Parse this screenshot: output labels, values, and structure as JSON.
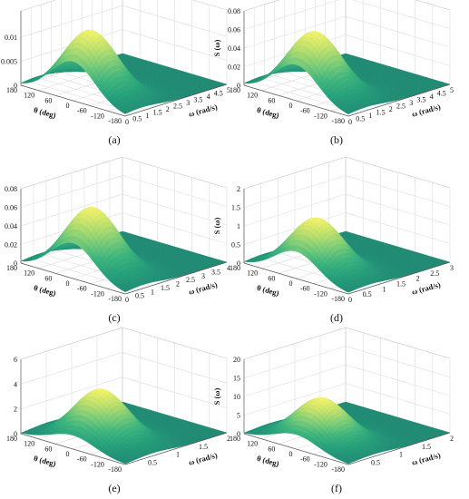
{
  "figure": {
    "background": "#ffffff"
  },
  "chart_data": [
    {
      "type": "surface",
      "panel_label": "(a)",
      "zlabel": "S (ω)",
      "xlabel": "ω (rad/s)",
      "ylabel": "θ (deg)",
      "z_ticks": [
        "0",
        "0.005",
        "0.01"
      ],
      "z_tick_values": [
        0,
        0.005,
        0.01
      ],
      "zlim": [
        0,
        0.0155
      ],
      "x_ticks": [
        "0",
        "0.5",
        "1",
        "1.5",
        "2",
        "2.5",
        "3",
        "3.5",
        "4",
        "4.5",
        "5"
      ],
      "x_tick_values": [
        0,
        0.5,
        1,
        1.5,
        2,
        2.5,
        3,
        3.5,
        4,
        4.5,
        5
      ],
      "xlim": [
        0,
        5
      ],
      "y_ticks": [
        "180",
        "120",
        "60",
        "0",
        "-60",
        "-120",
        "-180"
      ],
      "y_tick_values": [
        180,
        120,
        60,
        0,
        -60,
        -120,
        -180
      ],
      "ylim": [
        -180,
        180
      ],
      "peak": {
        "omega": 0.85,
        "theta": 0,
        "value": 0.0135
      }
    },
    {
      "type": "surface",
      "panel_label": "(b)",
      "zlabel": "S (ω)",
      "xlabel": "ω (rad/s)",
      "ylabel": "θ (deg)",
      "z_ticks": [
        "0",
        "0.02",
        "0.04",
        "0.06",
        "0.08"
      ],
      "z_tick_values": [
        0,
        0.02,
        0.04,
        0.06,
        0.08
      ],
      "zlim": [
        0,
        0.08
      ],
      "x_ticks": [
        "0",
        "0.5",
        "1",
        "1.5",
        "2",
        "2.5",
        "3",
        "3.5",
        "4",
        "4.5",
        "5"
      ],
      "x_tick_values": [
        0,
        0.5,
        1,
        1.5,
        2,
        2.5,
        3,
        3.5,
        4,
        4.5,
        5
      ],
      "xlim": [
        0,
        5
      ],
      "y_ticks": [
        "180",
        "120",
        "60",
        "0",
        "-60",
        "-120",
        "-180"
      ],
      "y_tick_values": [
        180,
        120,
        60,
        0,
        -60,
        -120,
        -180
      ],
      "ylim": [
        -180,
        180
      ],
      "peak": {
        "omega": 0.9,
        "theta": 0,
        "value": 0.068
      }
    },
    {
      "type": "surface",
      "panel_label": "(c)",
      "zlabel": "S (ω)",
      "xlabel": "ω (rad/s)",
      "ylabel": "θ (deg)",
      "z_ticks": [
        "0",
        "0.02",
        "0.04",
        "0.06",
        "0.08"
      ],
      "z_tick_values": [
        0,
        0.02,
        0.04,
        0.06,
        0.08
      ],
      "zlim": [
        0,
        0.08
      ],
      "x_ticks": [
        "0",
        "0.5",
        "1",
        "1.5",
        "2",
        "2.5",
        "3",
        "3.5",
        "4"
      ],
      "x_tick_values": [
        0,
        0.5,
        1,
        1.5,
        2,
        2.5,
        3,
        3.5,
        4
      ],
      "xlim": [
        0,
        4
      ],
      "y_ticks": [
        "180",
        "120",
        "60",
        "0",
        "-60",
        "-120",
        "-180"
      ],
      "y_tick_values": [
        180,
        120,
        60,
        0,
        -60,
        -120,
        -180
      ],
      "ylim": [
        -180,
        180
      ],
      "peak": {
        "omega": 0.75,
        "theta": 0,
        "value": 0.07
      }
    },
    {
      "type": "surface",
      "panel_label": "(d)",
      "zlabel": "S (ω)",
      "xlabel": "ω (rad/s)",
      "ylabel": "θ (deg)",
      "z_ticks": [
        "0",
        "0.5",
        "1",
        "1.5",
        "2"
      ],
      "z_tick_values": [
        0,
        0.5,
        1,
        1.5,
        2
      ],
      "zlim": [
        0,
        2
      ],
      "x_ticks": [
        "0",
        "0.5",
        "1",
        "1.5",
        "2",
        "2.5",
        "3"
      ],
      "x_tick_values": [
        0,
        0.5,
        1,
        1.5,
        2,
        2.5,
        3
      ],
      "xlim": [
        0,
        3
      ],
      "y_ticks": [
        "180",
        "120",
        "60",
        "0",
        "-60",
        "-120",
        "-180"
      ],
      "y_tick_values": [
        180,
        120,
        60,
        0,
        -60,
        -120,
        -180
      ],
      "ylim": [
        -180,
        180
      ],
      "peak": {
        "omega": 0.6,
        "theta": 0,
        "value": 1.45
      }
    },
    {
      "type": "surface",
      "panel_label": "(e)",
      "zlabel": "S (ω)",
      "xlabel": "ω (rad/s)",
      "ylabel": "θ (deg)",
      "z_ticks": [
        "0",
        "2",
        "4",
        "6"
      ],
      "z_tick_values": [
        0,
        2,
        4,
        6
      ],
      "zlim": [
        0,
        6
      ],
      "x_ticks": [
        "0.5",
        "1",
        "1.5",
        "2"
      ],
      "x_tick_values": [
        0.5,
        1,
        1.5,
        2
      ],
      "xlim": [
        0,
        2
      ],
      "y_ticks": [
        "180",
        "120",
        "60",
        "0",
        "-60",
        "-120",
        "-180"
      ],
      "y_tick_values": [
        180,
        120,
        60,
        0,
        -60,
        -120,
        -180
      ],
      "ylim": [
        -180,
        180
      ],
      "peak": {
        "omega": 0.55,
        "theta": 0,
        "value": 4.1
      }
    },
    {
      "type": "surface",
      "panel_label": "(f)",
      "zlabel": "S (ω)",
      "xlabel": "ω (rad/s)",
      "ylabel": "θ (deg)",
      "z_ticks": [
        "0",
        "5",
        "10",
        "15",
        "20"
      ],
      "z_tick_values": [
        0,
        5,
        10,
        15,
        20
      ],
      "zlim": [
        0,
        20
      ],
      "x_ticks": [
        "0.5",
        "1",
        "1.5",
        "2"
      ],
      "x_tick_values": [
        0.5,
        1,
        1.5,
        2
      ],
      "xlim": [
        0,
        2
      ],
      "y_ticks": [
        "180",
        "120",
        "60",
        "0",
        "-60",
        "-120",
        "-180"
      ],
      "y_tick_values": [
        180,
        120,
        60,
        0,
        -60,
        -120,
        -180
      ],
      "ylim": [
        -180,
        180
      ],
      "peak": {
        "omega": 0.5,
        "theta": 0,
        "value": 11.5
      }
    }
  ]
}
